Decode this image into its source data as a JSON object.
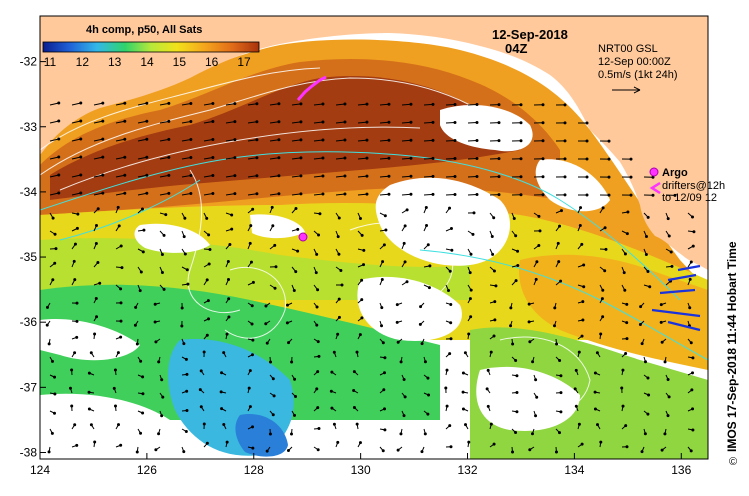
{
  "map": {
    "date": "12-Sep-2018",
    "time": "04Z",
    "product_label": "4h comp, p50, All Sats",
    "colorbar_ticks": [
      "11",
      "12",
      "13",
      "14",
      "15",
      "16",
      "17"
    ],
    "colorbar_colors": [
      "#0a1d8f",
      "#1f5fd6",
      "#33b8e8",
      "#2fd36b",
      "#b7e83a",
      "#f2e21a",
      "#f5a51c",
      "#e06a18",
      "#a8320c"
    ],
    "nrt_label": "NRT00 GSL",
    "nrt_time": "12-Sep 00:00Z",
    "vector_scale": "0.5m/s (1kt 24h)",
    "argo_label": "Argo",
    "drifters_line1": "drifters@12h",
    "drifters_line2": "to 12/09 12",
    "side_label": "IMOS 17-Sep-2018 11:44 Hobart Time",
    "copyright": "©",
    "x_ticks": [
      "124",
      "126",
      "128",
      "130",
      "132",
      "134",
      "136"
    ],
    "y_ticks": [
      "-32",
      "-33",
      "-34",
      "-35",
      "-36",
      "-37",
      "-38"
    ],
    "x_range": [
      124,
      136.5
    ],
    "y_range": [
      -31.3,
      -38.1
    ],
    "land_color": "#ffc99b",
    "argo_color": "#ff33ff",
    "current_vector_color": "#1a33dd"
  }
}
